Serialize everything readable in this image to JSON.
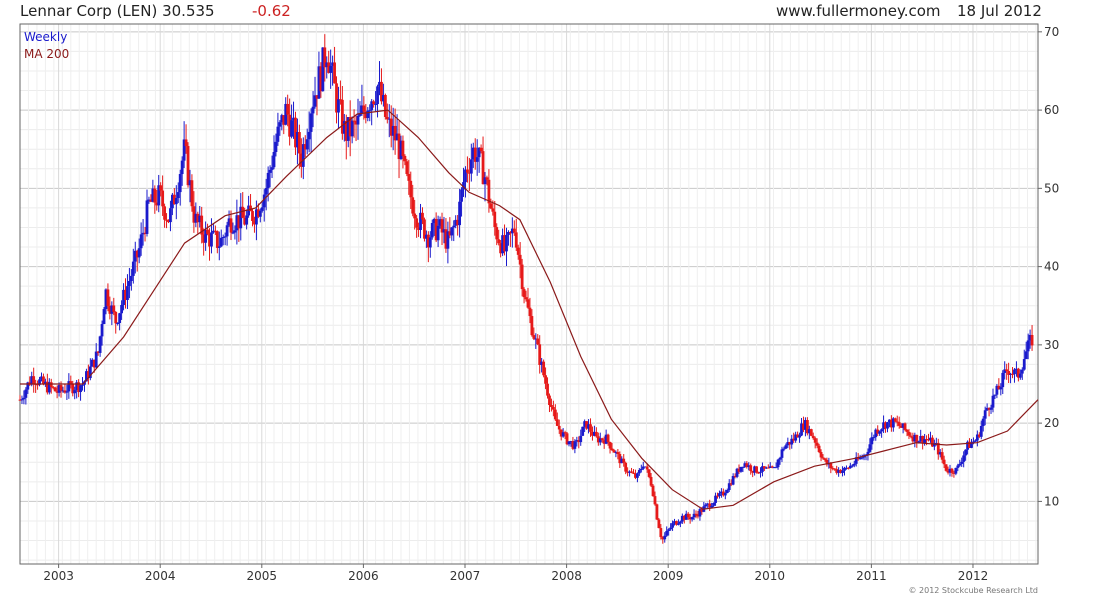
{
  "header": {
    "title": "Lennar Corp (LEN) 30.535",
    "change": "-0.62",
    "site": "www.fullermoney.com",
    "date": "18 Jul 2012"
  },
  "copyright": "© 2012 Stockcube Research Ltd",
  "colors": {
    "up_bar": "#1a1acc",
    "down_bar": "#e61919",
    "ma_line": "#8b1a1a",
    "grid": "#d8d8d8",
    "change_text": "#cc2222"
  },
  "chart_data": {
    "type": "line",
    "xlabel": "",
    "ylabel": "",
    "xlim": [
      2002.58,
      2012.6
    ],
    "ylim": [
      2,
      71
    ],
    "y_axis_position": "right",
    "grid": true,
    "legend_placement": "top-left",
    "y_ticks": [
      10,
      20,
      30,
      40,
      50,
      60,
      70
    ],
    "x_ticks": [
      {
        "label": "2003",
        "value": 2002.96
      },
      {
        "label": "2004",
        "value": 2003.96
      },
      {
        "label": "2005",
        "value": 2004.96
      },
      {
        "label": "2006",
        "value": 2005.96
      },
      {
        "label": "2007",
        "value": 2006.96
      },
      {
        "label": "2008",
        "value": 2007.96
      },
      {
        "label": "2009",
        "value": 2008.96
      },
      {
        "label": "2010",
        "value": 2009.96
      },
      {
        "label": "2011",
        "value": 2010.96
      },
      {
        "label": "2012",
        "value": 2011.96
      }
    ],
    "series": [
      {
        "name": "Weekly",
        "style": "ohlc-bars",
        "color": "#1a1acc",
        "x": [
          2002.58,
          2002.7,
          2002.8,
          2002.95,
          2003.05,
          2003.2,
          2003.35,
          2003.42,
          2003.52,
          2003.6,
          2003.75,
          2003.85,
          2003.95,
          2004.05,
          2004.2,
          2004.3,
          2004.4,
          2004.55,
          2004.65,
          2004.8,
          2004.9,
          2005.0,
          2005.1,
          2005.2,
          2005.35,
          2005.45,
          2005.55,
          2005.6,
          2005.7,
          2005.78,
          2005.9,
          2006.0,
          2006.1,
          2006.2,
          2006.3,
          2006.4,
          2006.5,
          2006.6,
          2006.7,
          2006.8,
          2006.9,
          2006.96,
          2007.05,
          2007.15,
          2007.25,
          2007.35,
          2007.45,
          2007.55,
          2007.7,
          2007.85,
          2007.95,
          2008.05,
          2008.15,
          2008.25,
          2008.35,
          2008.45,
          2008.55,
          2008.65,
          2008.72,
          2008.8,
          2008.85,
          2008.9,
          2009.0,
          2009.1,
          2009.2,
          2009.3,
          2009.4,
          2009.5,
          2009.6,
          2009.7,
          2009.8,
          2009.9,
          2010.0,
          2010.1,
          2010.2,
          2010.3,
          2010.4,
          2010.5,
          2010.6,
          2010.7,
          2010.8,
          2010.9,
          2011.0,
          2011.1,
          2011.2,
          2011.3,
          2011.4,
          2011.5,
          2011.6,
          2011.7,
          2011.8,
          2011.9,
          2012.0,
          2012.1,
          2012.2,
          2012.3,
          2012.4,
          2012.48,
          2012.55
        ],
        "values": [
          23,
          26,
          25,
          24,
          24.5,
          25,
          29,
          37,
          33,
          36,
          42,
          48,
          49,
          46,
          55,
          46,
          44,
          43,
          46,
          46,
          47,
          50,
          56,
          60,
          54,
          61,
          65,
          68,
          61,
          57,
          58,
          61,
          63,
          58,
          56,
          50,
          46,
          44,
          45,
          43,
          47,
          52,
          55,
          52,
          45,
          42,
          45,
          36,
          28,
          20,
          18,
          17,
          20,
          18,
          18,
          16,
          14,
          13,
          15,
          12,
          8,
          5,
          7,
          8,
          8,
          9,
          10,
          11,
          13,
          15,
          14,
          14,
          14,
          17,
          18,
          20,
          18,
          15,
          14,
          14,
          15,
          16,
          19,
          20,
          20,
          19,
          18,
          18,
          17,
          14,
          14,
          17,
          18,
          22,
          24,
          27,
          26,
          29,
          31
        ]
      },
      {
        "name": "MA 200",
        "style": "line",
        "color": "#8b1a1a",
        "x": [
          2002.58,
          2003.2,
          2003.6,
          2003.9,
          2004.2,
          2004.6,
          2004.9,
          2005.2,
          2005.6,
          2005.9,
          2006.2,
          2006.5,
          2006.8,
          2007.0,
          2007.3,
          2007.5,
          2007.8,
          2008.1,
          2008.4,
          2008.7,
          2009.0,
          2009.3,
          2009.6,
          2010.0,
          2010.4,
          2010.8,
          2011.1,
          2011.4,
          2011.7,
          2012.0,
          2012.3,
          2012.6
        ],
        "values": [
          25,
          25,
          31,
          37,
          43,
          46.5,
          47.5,
          51.5,
          56.5,
          59.5,
          60,
          56.5,
          52,
          49.5,
          47.8,
          46,
          38,
          28.5,
          20.5,
          15.5,
          11.5,
          9,
          9.5,
          12.5,
          14.5,
          15.5,
          16.5,
          17.5,
          17.2,
          17.5,
          19,
          23
        ]
      }
    ]
  }
}
